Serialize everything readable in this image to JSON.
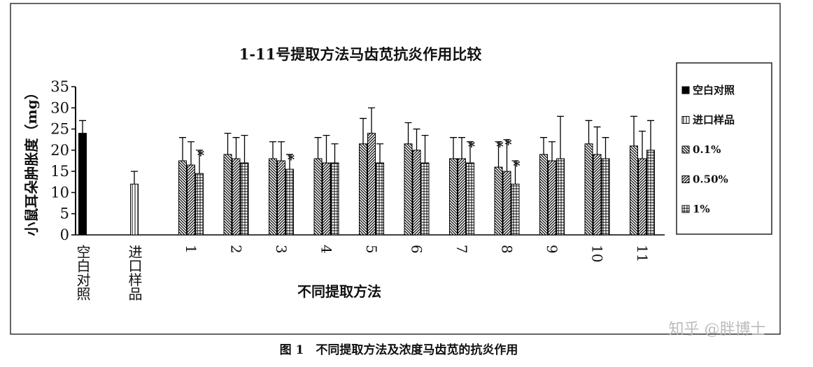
{
  "chart_data": {
    "type": "bar",
    "title": "1-11号提取方法马齿苋抗炎作用比较",
    "y_label": "小鼠耳朵肿胀度（mg）",
    "x_label": "不同提取方法",
    "caption": "图 1　不同提取方法及浓度马齿苋的抗炎作用",
    "watermark": "知乎 @胖博士",
    "categories": [
      "空白对照",
      "进口样品",
      "1",
      "2",
      "3",
      "4",
      "5",
      "6",
      "7",
      "8",
      "9",
      "10",
      "11"
    ],
    "ylim": [
      0,
      35
    ],
    "yticks": [
      0,
      5,
      10,
      15,
      20,
      25,
      30,
      35
    ],
    "color": "#000000",
    "series": [
      {
        "name": "空白对照",
        "pattern": "solid",
        "values": [
          24,
          null,
          null,
          null,
          null,
          null,
          null,
          null,
          null,
          null,
          null,
          null,
          null
        ],
        "errors": [
          3,
          null,
          null,
          null,
          null,
          null,
          null,
          null,
          null,
          null,
          null,
          null,
          null
        ]
      },
      {
        "name": "进口样品",
        "pattern": "vertical",
        "values": [
          null,
          12,
          null,
          null,
          null,
          null,
          null,
          null,
          null,
          null,
          null,
          null,
          null
        ],
        "errors": [
          null,
          3,
          null,
          null,
          null,
          null,
          null,
          null,
          null,
          null,
          null,
          null,
          null
        ]
      },
      {
        "name": "0.1%",
        "pattern": "backslash",
        "values": [
          null,
          null,
          17.5,
          19,
          18,
          18,
          21.5,
          21.5,
          18,
          16,
          19,
          21.5,
          21
        ],
        "errors": [
          null,
          null,
          5.5,
          5,
          4,
          5,
          6,
          5,
          5,
          6,
          4,
          5.5,
          7
        ],
        "annotations": [
          null,
          null,
          null,
          null,
          null,
          null,
          null,
          null,
          null,
          "*",
          null,
          null,
          null
        ]
      },
      {
        "name": "0.50%",
        "pattern": "slash",
        "values": [
          null,
          null,
          16.5,
          18,
          17.5,
          17,
          24,
          20,
          18,
          15,
          17.5,
          19,
          18
        ],
        "errors": [
          null,
          null,
          5.5,
          5,
          4.5,
          6.5,
          6,
          5,
          5,
          7.5,
          4.5,
          6.5,
          6.5
        ],
        "annotations": [
          null,
          null,
          null,
          null,
          null,
          null,
          null,
          null,
          null,
          "*",
          null,
          null,
          null
        ]
      },
      {
        "name": "1%",
        "pattern": "grid",
        "values": [
          null,
          null,
          14.5,
          17,
          15.5,
          17,
          17,
          17,
          17,
          12,
          18,
          18,
          20
        ],
        "errors": [
          null,
          null,
          5.5,
          6.5,
          3.5,
          4.5,
          4.5,
          6.5,
          5,
          5.5,
          10,
          5,
          7
        ],
        "annotations": [
          null,
          null,
          "*",
          null,
          "*",
          null,
          null,
          null,
          "*",
          "*",
          null,
          null,
          null
        ]
      }
    ]
  }
}
